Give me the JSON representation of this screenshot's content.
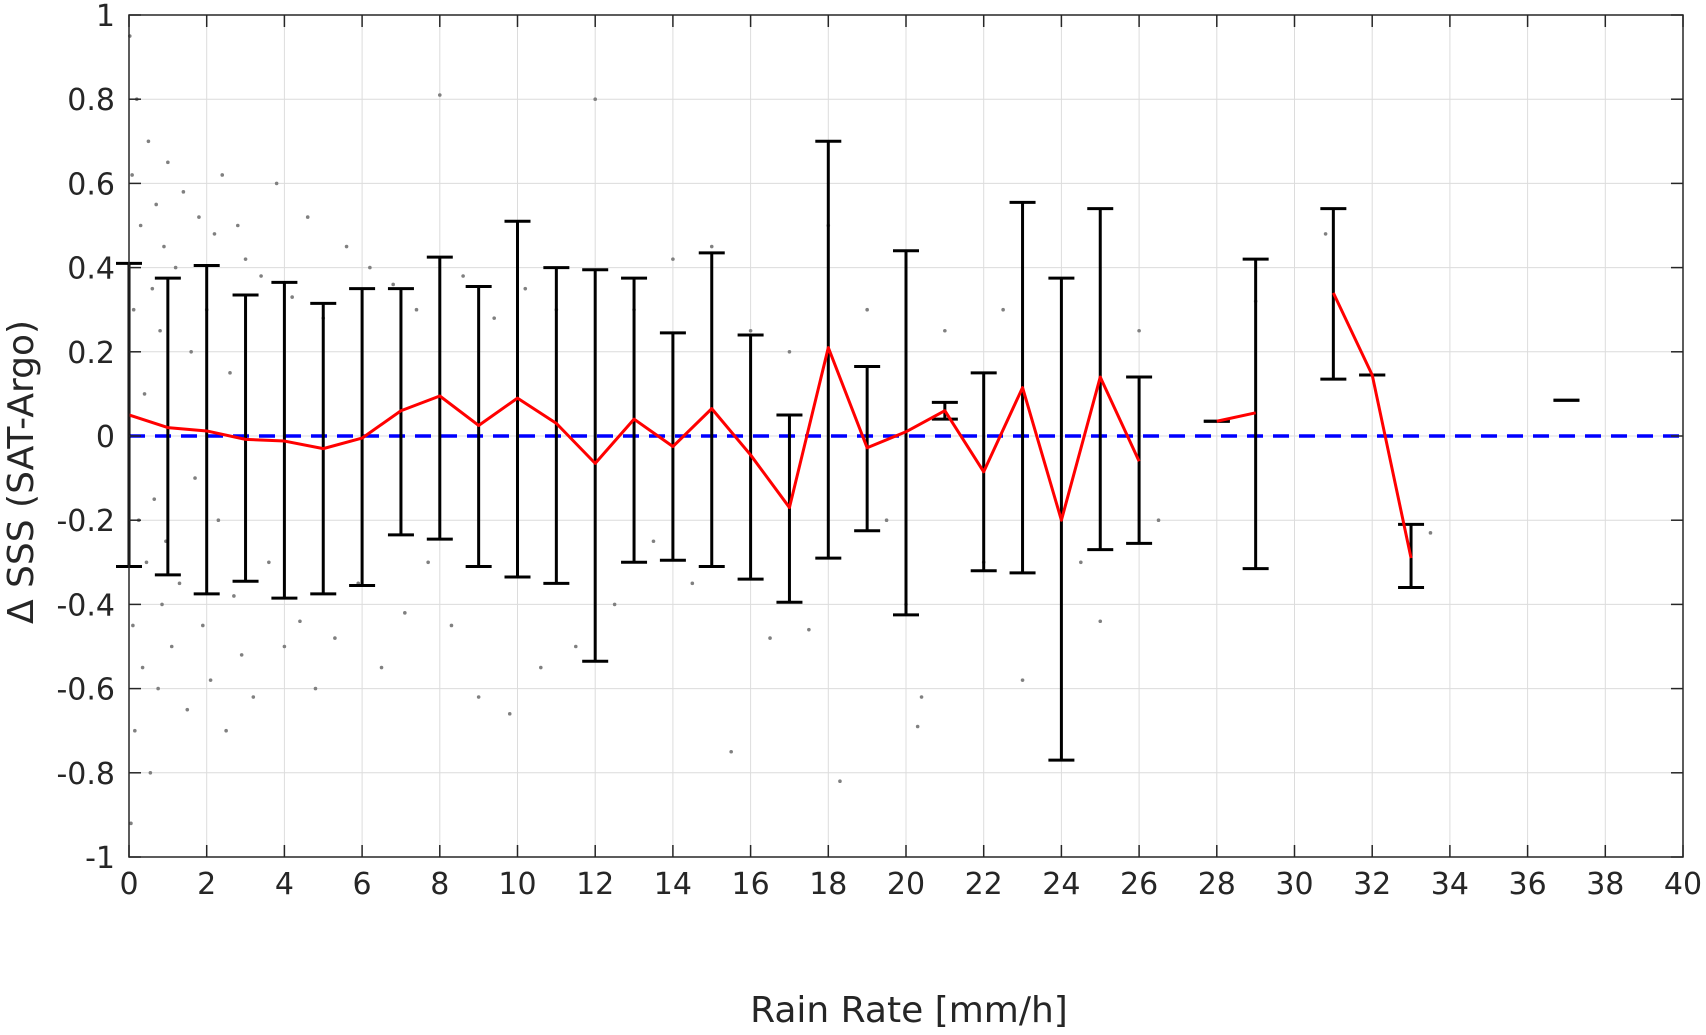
{
  "chart_data": {
    "type": "scatter",
    "title": "",
    "xlabel": "Rain Rate [mm/h]",
    "ylabel": "Δ SSS (SAT-Argo)",
    "xlim": [
      0,
      40
    ],
    "ylim": [
      -1,
      1
    ],
    "xticks": [
      0,
      2,
      4,
      6,
      8,
      10,
      12,
      14,
      16,
      18,
      20,
      22,
      24,
      26,
      28,
      30,
      32,
      34,
      36,
      38,
      40
    ],
    "yticks": [
      1,
      0.8,
      0.6,
      0.4,
      0.2,
      0,
      -0.2,
      -0.4,
      -0.6,
      -0.8,
      -1
    ],
    "ytick_labels": [
      "1",
      "0.8",
      "0.6",
      "0.4",
      "0.2",
      "0",
      "-0.2",
      "-0.4",
      "-0.6",
      "-0.8",
      "-1"
    ],
    "grid": true,
    "legend": "none",
    "colors": {
      "scatter": "#808080",
      "mean_line": "#ff0000",
      "error_bars": "#000000",
      "zero_line": "#0000ff",
      "grid": "#dcdcdc",
      "axes": "#262626"
    },
    "zero_reference": 0,
    "binned_mean": [
      [
        0,
        0.05
      ],
      [
        1,
        0.02
      ],
      [
        2,
        0.012
      ],
      [
        3,
        -0.008
      ],
      [
        4,
        -0.012
      ],
      [
        5,
        -0.03
      ],
      [
        6,
        -0.005
      ],
      [
        7,
        0.06
      ],
      [
        8,
        0.095
      ],
      [
        9,
        0.025
      ],
      [
        10,
        0.09
      ],
      [
        11,
        0.03
      ],
      [
        12,
        -0.065
      ],
      [
        13,
        0.04
      ],
      [
        14,
        -0.025
      ],
      [
        15,
        0.065
      ],
      [
        16,
        -0.045
      ],
      [
        17,
        -0.17
      ],
      [
        18,
        0.21
      ],
      [
        19,
        -0.028
      ],
      [
        20,
        0.01
      ],
      [
        21,
        0.06
      ],
      [
        22,
        -0.085
      ],
      [
        23,
        0.115
      ],
      [
        24,
        -0.2
      ],
      [
        25,
        0.14
      ],
      [
        26,
        -0.06
      ],
      null,
      [
        28,
        0.035
      ],
      [
        29,
        0.055
      ],
      null,
      [
        31,
        0.34
      ],
      [
        32,
        0.145
      ],
      [
        33,
        -0.29
      ]
    ],
    "error_bars": [
      {
        "x": 0,
        "low": -0.31,
        "high": 0.41
      },
      {
        "x": 1,
        "low": -0.33,
        "high": 0.375
      },
      {
        "x": 2,
        "low": -0.375,
        "high": 0.405
      },
      {
        "x": 3,
        "low": -0.345,
        "high": 0.335
      },
      {
        "x": 4,
        "low": -0.385,
        "high": 0.365
      },
      {
        "x": 5,
        "low": -0.375,
        "high": 0.315
      },
      {
        "x": 6,
        "low": -0.355,
        "high": 0.35
      },
      {
        "x": 7,
        "low": -0.235,
        "high": 0.35
      },
      {
        "x": 8,
        "low": -0.245,
        "high": 0.425
      },
      {
        "x": 9,
        "low": -0.31,
        "high": 0.355
      },
      {
        "x": 10,
        "low": -0.335,
        "high": 0.51
      },
      {
        "x": 11,
        "low": -0.35,
        "high": 0.4
      },
      {
        "x": 12,
        "low": -0.535,
        "high": 0.395
      },
      {
        "x": 13,
        "low": -0.3,
        "high": 0.375
      },
      {
        "x": 14,
        "low": -0.295,
        "high": 0.245
      },
      {
        "x": 15,
        "low": -0.31,
        "high": 0.435
      },
      {
        "x": 16,
        "low": -0.34,
        "high": 0.24
      },
      {
        "x": 17,
        "low": -0.395,
        "high": 0.05
      },
      {
        "x": 18,
        "low": -0.29,
        "high": 0.7
      },
      {
        "x": 19,
        "low": -0.225,
        "high": 0.165
      },
      {
        "x": 20,
        "low": -0.425,
        "high": 0.44
      },
      {
        "x": 21,
        "low": 0.04,
        "high": 0.08
      },
      {
        "x": 22,
        "low": -0.32,
        "high": 0.15
      },
      {
        "x": 23,
        "low": -0.325,
        "high": 0.555
      },
      {
        "x": 24,
        "low": -0.77,
        "high": 0.375
      },
      {
        "x": 25,
        "low": -0.27,
        "high": 0.54
      },
      {
        "x": 26,
        "low": -0.255,
        "high": 0.14
      },
      {
        "x": 28,
        "low": 0.035,
        "high": 0.035
      },
      {
        "x": 29,
        "low": -0.315,
        "high": 0.42
      },
      {
        "x": 31,
        "low": 0.135,
        "high": 0.54
      },
      {
        "x": 32,
        "low": 0.145,
        "high": 0.145
      },
      {
        "x": 33,
        "low": -0.36,
        "high": -0.21
      },
      {
        "x": 37,
        "low": 0.085,
        "high": 0.085
      }
    ],
    "scatter_samples": [
      [
        0.02,
        0.95
      ],
      [
        0.05,
        -0.92
      ],
      [
        0.08,
        0.62
      ],
      [
        0.1,
        -0.45
      ],
      [
        0.12,
        0.3
      ],
      [
        0.15,
        -0.7
      ],
      [
        0.2,
        0.8
      ],
      [
        0.25,
        -0.2
      ],
      [
        0.3,
        0.5
      ],
      [
        0.35,
        -0.55
      ],
      [
        0.4,
        0.1
      ],
      [
        0.45,
        -0.3
      ],
      [
        0.5,
        0.7
      ],
      [
        0.55,
        -0.8
      ],
      [
        0.6,
        0.35
      ],
      [
        0.65,
        -0.15
      ],
      [
        0.7,
        0.55
      ],
      [
        0.75,
        -0.6
      ],
      [
        0.8,
        0.25
      ],
      [
        0.85,
        -0.4
      ],
      [
        0.9,
        0.45
      ],
      [
        0.95,
        -0.25
      ],
      [
        1.0,
        0.65
      ],
      [
        1.1,
        -0.5
      ],
      [
        1.2,
        0.4
      ],
      [
        1.3,
        -0.35
      ],
      [
        1.4,
        0.58
      ],
      [
        1.5,
        -0.65
      ],
      [
        1.6,
        0.2
      ],
      [
        1.7,
        -0.1
      ],
      [
        1.8,
        0.52
      ],
      [
        1.9,
        -0.45
      ],
      [
        2.0,
        0.3
      ],
      [
        2.1,
        -0.58
      ],
      [
        2.2,
        0.48
      ],
      [
        2.3,
        -0.2
      ],
      [
        2.4,
        0.62
      ],
      [
        2.5,
        -0.7
      ],
      [
        2.6,
        0.15
      ],
      [
        2.7,
        -0.38
      ],
      [
        2.8,
        0.5
      ],
      [
        2.9,
        -0.52
      ],
      [
        3.0,
        0.42
      ],
      [
        3.2,
        -0.62
      ],
      [
        3.4,
        0.38
      ],
      [
        3.6,
        -0.3
      ],
      [
        3.8,
        0.6
      ],
      [
        4.0,
        -0.5
      ],
      [
        4.2,
        0.33
      ],
      [
        4.4,
        -0.44
      ],
      [
        4.6,
        0.52
      ],
      [
        4.8,
        -0.6
      ],
      [
        5.0,
        0.28
      ],
      [
        5.3,
        -0.48
      ],
      [
        5.6,
        0.45
      ],
      [
        5.9,
        -0.35
      ],
      [
        6.2,
        0.4
      ],
      [
        6.5,
        -0.55
      ],
      [
        6.8,
        0.36
      ],
      [
        7.1,
        -0.42
      ],
      [
        7.4,
        0.3
      ],
      [
        7.7,
        -0.3
      ],
      [
        8.0,
        0.81
      ],
      [
        8.3,
        -0.45
      ],
      [
        8.6,
        0.38
      ],
      [
        9.0,
        -0.62
      ],
      [
        9.4,
        0.28
      ],
      [
        9.8,
        -0.66
      ],
      [
        10.2,
        0.35
      ],
      [
        10.6,
        -0.55
      ],
      [
        11.0,
        0.3
      ],
      [
        11.5,
        -0.5
      ],
      [
        12.0,
        0.8
      ],
      [
        12.5,
        -0.4
      ],
      [
        13.0,
        0.3
      ],
      [
        13.5,
        -0.25
      ],
      [
        14.0,
        0.42
      ],
      [
        14.5,
        -0.35
      ],
      [
        15.0,
        0.45
      ],
      [
        15.5,
        -0.75
      ],
      [
        16.0,
        0.25
      ],
      [
        16.5,
        -0.48
      ],
      [
        17.0,
        0.2
      ],
      [
        17.5,
        -0.46
      ],
      [
        18.0,
        0.5
      ],
      [
        18.3,
        -0.82
      ],
      [
        19.0,
        0.3
      ],
      [
        19.5,
        -0.2
      ],
      [
        20.0,
        -0.4
      ],
      [
        20.4,
        -0.62
      ],
      [
        20.3,
        -0.69
      ],
      [
        21.0,
        0.25
      ],
      [
        22.0,
        -0.3
      ],
      [
        22.5,
        0.3
      ],
      [
        23.0,
        -0.58
      ],
      [
        24.5,
        -0.3
      ],
      [
        25.0,
        -0.44
      ],
      [
        26.0,
        0.25
      ],
      [
        26.5,
        -0.2
      ],
      [
        29.0,
        0.32
      ],
      [
        30.8,
        0.48
      ],
      [
        33.5,
        -0.23
      ]
    ]
  }
}
